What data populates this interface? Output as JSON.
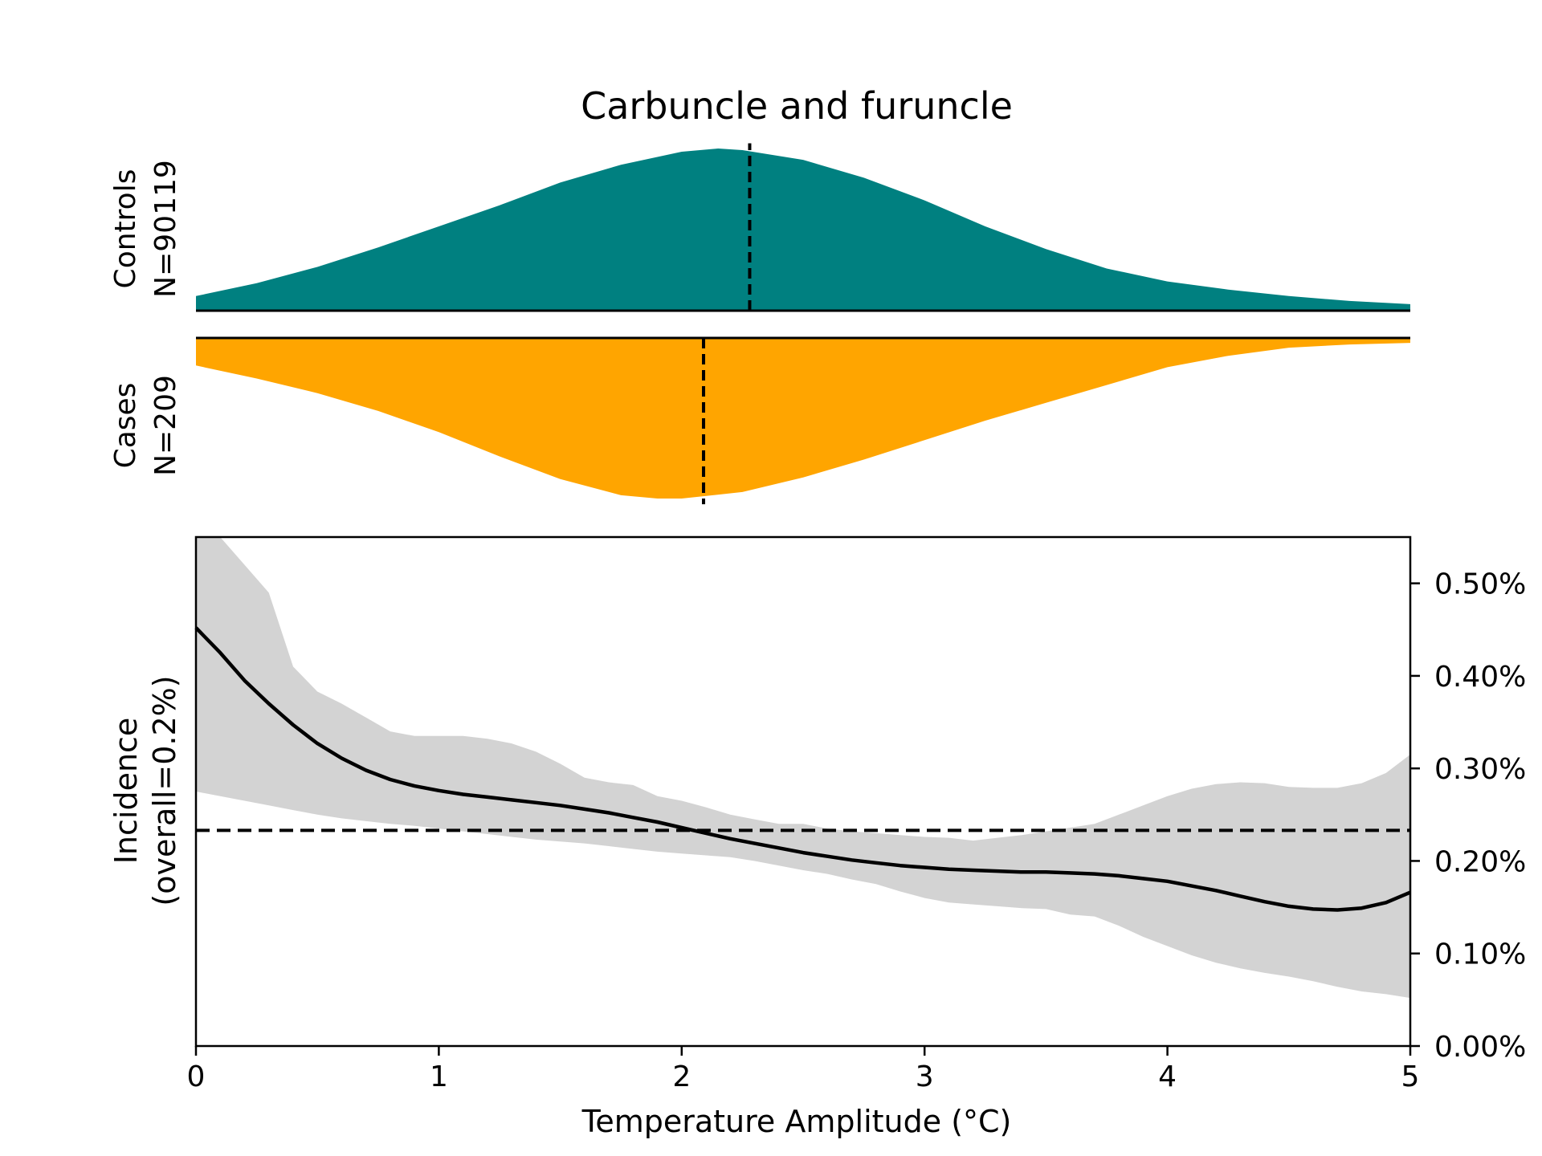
{
  "chart_data": {
    "type": "area",
    "title": "Carbuncle and furuncle",
    "xlabel": "Temperature Amplitude (°C)",
    "xlim": [
      0,
      5
    ],
    "x_ticks": [
      0,
      1,
      2,
      3,
      4,
      5
    ],
    "x_tick_labels": [
      "0",
      "1",
      "2",
      "3",
      "4",
      "5"
    ],
    "distributions": {
      "controls": {
        "label_line1": "Controls",
        "label_line2": "N=90119",
        "color": "#008080",
        "mean_marker": 2.28,
        "x": [
          0,
          0.25,
          0.5,
          0.75,
          1.0,
          1.25,
          1.5,
          1.75,
          2.0,
          2.15,
          2.25,
          2.5,
          2.75,
          3.0,
          3.25,
          3.5,
          3.75,
          4.0,
          4.25,
          4.5,
          4.75,
          5.0
        ],
        "density": [
          0.09,
          0.17,
          0.27,
          0.39,
          0.52,
          0.65,
          0.79,
          0.9,
          0.98,
          1.0,
          0.99,
          0.93,
          0.82,
          0.68,
          0.52,
          0.38,
          0.26,
          0.18,
          0.13,
          0.09,
          0.06,
          0.04
        ]
      },
      "cases": {
        "label_line1": "Cases",
        "label_line2": "N=209",
        "color": "#FFA500",
        "mean_marker": 2.09,
        "x": [
          0,
          0.25,
          0.5,
          0.75,
          1.0,
          1.25,
          1.5,
          1.75,
          1.9,
          2.0,
          2.25,
          2.5,
          2.75,
          3.0,
          3.25,
          3.5,
          3.75,
          4.0,
          4.25,
          4.5,
          4.75,
          5.0
        ],
        "density": [
          0.17,
          0.25,
          0.34,
          0.45,
          0.58,
          0.73,
          0.87,
          0.97,
          0.99,
          0.99,
          0.95,
          0.86,
          0.75,
          0.63,
          0.51,
          0.4,
          0.29,
          0.18,
          0.11,
          0.06,
          0.04,
          0.03
        ]
      }
    },
    "incidence": {
      "ylabel_line1": "Incidence",
      "ylabel_line2": "(overall=0.2%)",
      "ylim": [
        0,
        0.55
      ],
      "y_ticks": [
        0,
        0.1,
        0.2,
        0.3,
        0.4,
        0.5
      ],
      "y_tick_labels": [
        "0.00%",
        "0.10%",
        "0.20%",
        "0.30%",
        "0.40%",
        "0.50%"
      ],
      "overall": 0.233,
      "line_color": "#000000",
      "band_color": "#d3d3d3",
      "x": [
        0,
        0.1,
        0.2,
        0.3,
        0.4,
        0.5,
        0.6,
        0.7,
        0.8,
        0.9,
        1.0,
        1.1,
        1.2,
        1.3,
        1.4,
        1.5,
        1.6,
        1.7,
        1.8,
        1.9,
        2.0,
        2.1,
        2.2,
        2.3,
        2.4,
        2.5,
        2.6,
        2.7,
        2.8,
        2.9,
        3.0,
        3.1,
        3.2,
        3.3,
        3.4,
        3.5,
        3.6,
        3.7,
        3.8,
        3.9,
        4.0,
        4.1,
        4.2,
        4.3,
        4.4,
        4.5,
        4.6,
        4.7,
        4.8,
        4.9,
        5.0
      ],
      "mean": [
        0.452,
        0.425,
        0.395,
        0.37,
        0.347,
        0.327,
        0.311,
        0.298,
        0.288,
        0.281,
        0.276,
        0.272,
        0.269,
        0.266,
        0.263,
        0.26,
        0.256,
        0.252,
        0.247,
        0.242,
        0.236,
        0.23,
        0.224,
        0.219,
        0.214,
        0.209,
        0.205,
        0.201,
        0.198,
        0.195,
        0.193,
        0.191,
        0.19,
        0.189,
        0.188,
        0.188,
        0.187,
        0.186,
        0.184,
        0.181,
        0.178,
        0.173,
        0.168,
        0.162,
        0.156,
        0.151,
        0.148,
        0.147,
        0.149,
        0.155,
        0.166
      ],
      "upper": [
        0.56,
        0.55,
        0.52,
        0.49,
        0.41,
        0.383,
        0.37,
        0.355,
        0.34,
        0.335,
        0.335,
        0.335,
        0.332,
        0.327,
        0.318,
        0.305,
        0.29,
        0.285,
        0.282,
        0.27,
        0.265,
        0.258,
        0.25,
        0.245,
        0.24,
        0.24,
        0.235,
        0.232,
        0.23,
        0.228,
        0.226,
        0.225,
        0.222,
        0.225,
        0.228,
        0.232,
        0.236,
        0.24,
        0.25,
        0.26,
        0.27,
        0.278,
        0.283,
        0.285,
        0.284,
        0.28,
        0.279,
        0.279,
        0.284,
        0.295,
        0.315
      ],
      "lower": [
        0.275,
        0.27,
        0.265,
        0.26,
        0.255,
        0.25,
        0.246,
        0.243,
        0.24,
        0.238,
        0.235,
        0.232,
        0.229,
        0.226,
        0.223,
        0.221,
        0.219,
        0.216,
        0.213,
        0.21,
        0.208,
        0.206,
        0.204,
        0.2,
        0.195,
        0.19,
        0.186,
        0.18,
        0.175,
        0.167,
        0.16,
        0.155,
        0.153,
        0.151,
        0.149,
        0.148,
        0.142,
        0.14,
        0.13,
        0.118,
        0.108,
        0.098,
        0.09,
        0.084,
        0.079,
        0.075,
        0.07,
        0.064,
        0.059,
        0.056,
        0.052
      ]
    }
  }
}
